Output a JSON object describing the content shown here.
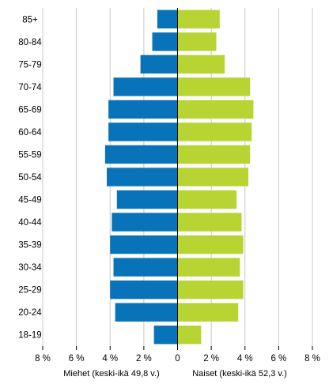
{
  "chart_data": {
    "type": "bar",
    "orientation": "horizontal",
    "layout": "population-pyramid",
    "categories": [
      "85+",
      "80-84",
      "75-79",
      "70-74",
      "65-69",
      "60-64",
      "55-59",
      "50-54",
      "45-49",
      "40-44",
      "35-39",
      "30-34",
      "25-29",
      "20-24",
      "18-19"
    ],
    "series": [
      {
        "name": "Miehet (keski-ikä 49,8 v.)",
        "side": "left",
        "color": "#0873b8",
        "values": [
          1.2,
          1.5,
          2.2,
          3.8,
          4.1,
          4.1,
          4.3,
          4.2,
          3.6,
          3.9,
          4.0,
          3.8,
          4.0,
          3.7,
          1.4
        ]
      },
      {
        "name": "Naiset (keski-ikä 52,3 v.)",
        "side": "right",
        "color": "#b8d432",
        "values": [
          2.5,
          2.3,
          2.8,
          4.3,
          4.5,
          4.4,
          4.3,
          4.2,
          3.5,
          3.8,
          3.9,
          3.7,
          3.9,
          3.6,
          1.4
        ]
      }
    ],
    "x_ticks": [
      "8 %",
      "6 %",
      "4 %",
      "2 %",
      "0",
      "2 %",
      "4 %",
      "6 %",
      "8 %"
    ],
    "xlim": [
      -8,
      8
    ],
    "grid": true,
    "legend_position": "bottom"
  }
}
